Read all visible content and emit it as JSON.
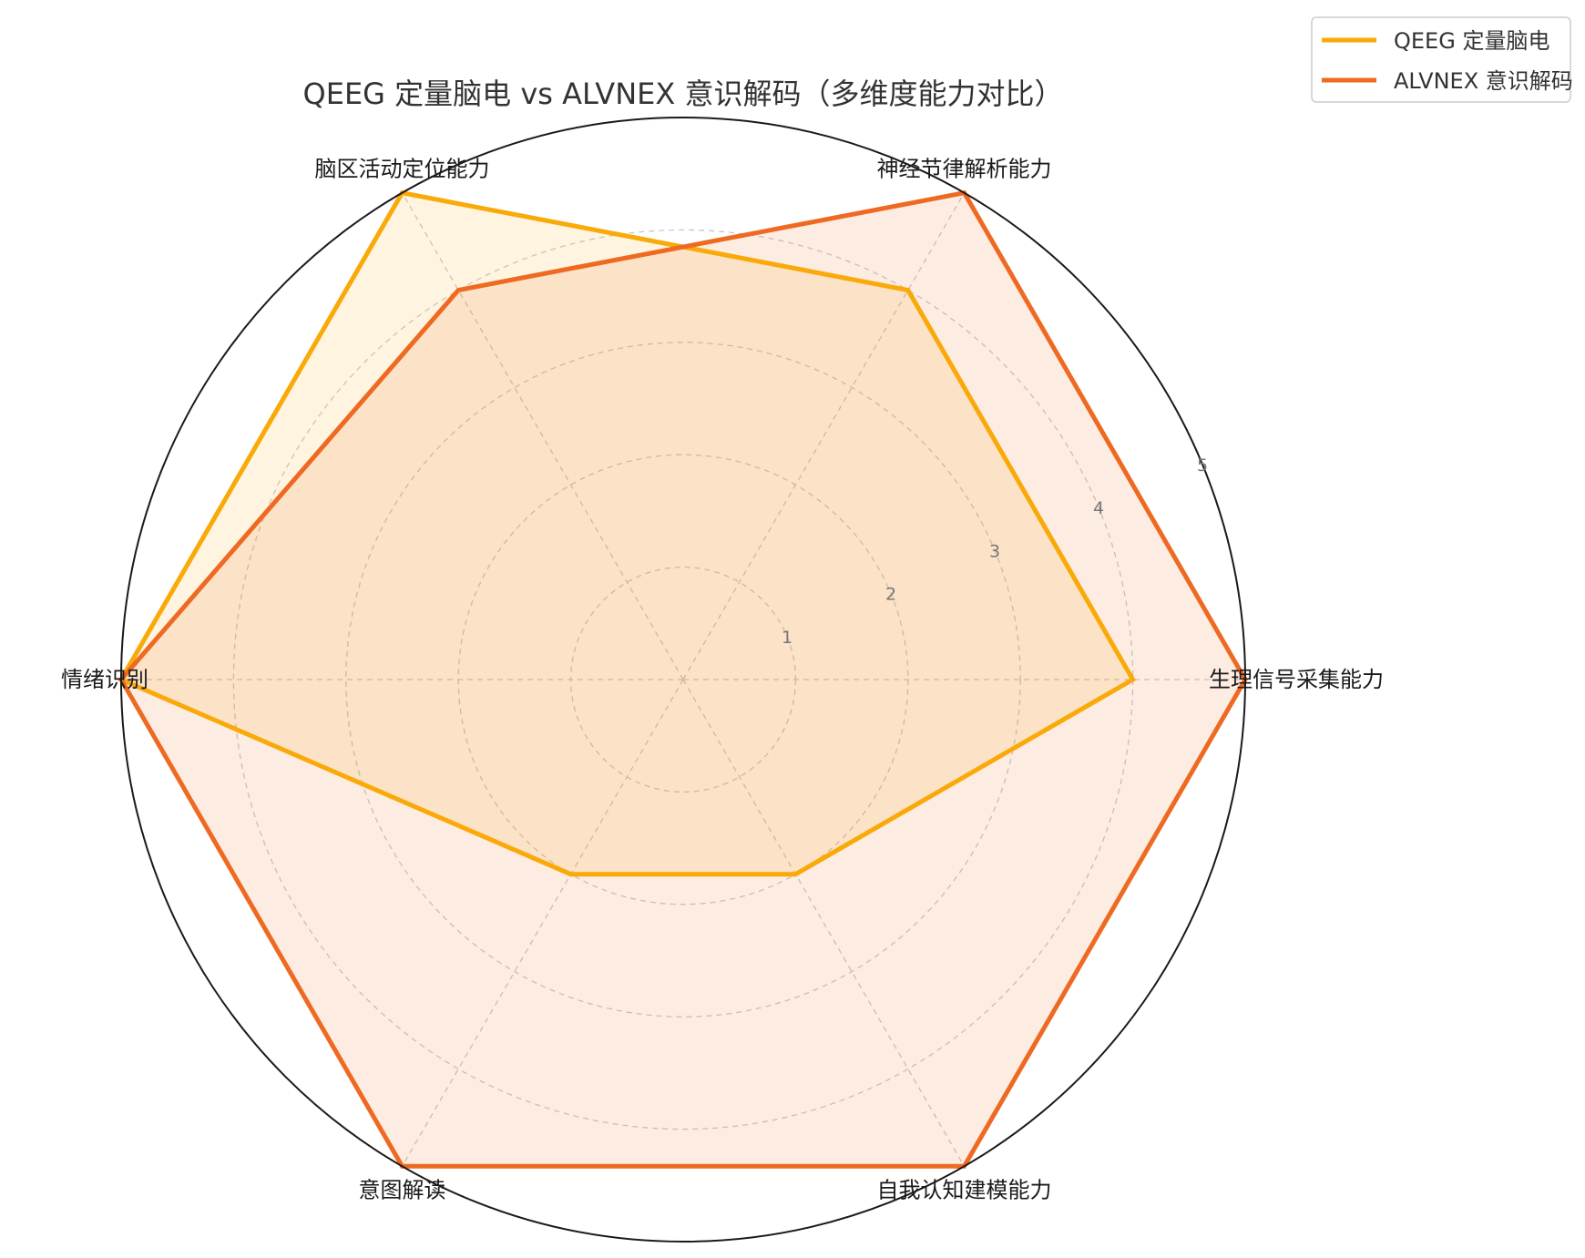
{
  "chart_data": {
    "type": "radar",
    "title": "QEEG 定量脑电 vs ALVNEX 意识解码（多维度能力对比）",
    "axes": [
      "生理信号采集能力",
      "神经节律解析能力",
      "脑区活动定位能力",
      "情绪识别",
      "意图解读",
      "自我认知建模能力"
    ],
    "rmax": 5,
    "rticks": [
      1,
      2,
      3,
      4,
      5
    ],
    "grid": true,
    "legend_position": "top-right",
    "series": [
      {
        "name": "QEEG 定量脑电",
        "values": [
          4,
          4,
          5,
          5,
          2,
          2
        ],
        "color": "#F9A908"
      },
      {
        "name": "ALVNEX 意识解码",
        "values": [
          5,
          5,
          4,
          5,
          5,
          5
        ],
        "color": "#EE6A22"
      }
    ]
  }
}
